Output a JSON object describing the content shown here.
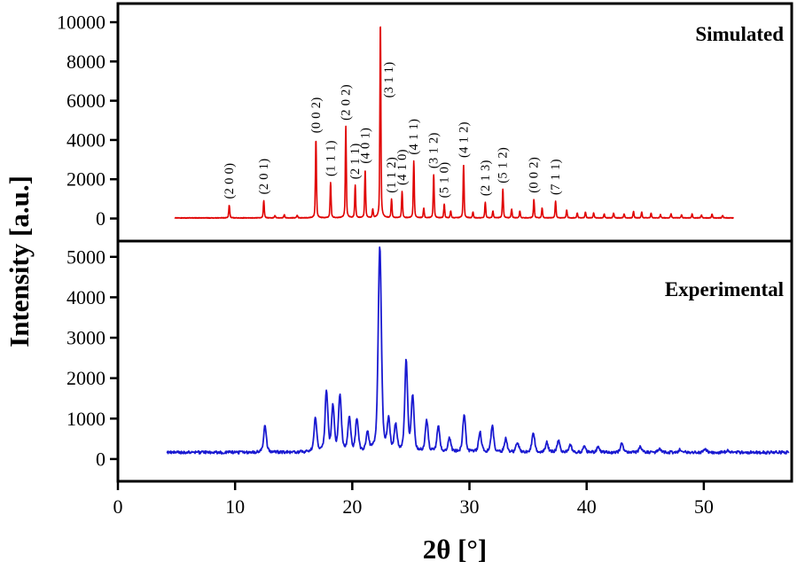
{
  "chart_data": {
    "type": "line",
    "xlabel": "2θ [°]",
    "ylabel": "Intensity [a.u.]",
    "x_ticks": [
      0,
      10,
      20,
      30,
      40,
      50
    ],
    "x_range": [
      0,
      57.5
    ],
    "panels": [
      {
        "label": "Simulated",
        "color": "#e00000",
        "y_ticks": [
          0,
          2000,
          4000,
          6000,
          8000,
          10000
        ],
        "y_max": 10000,
        "peaks": [
          {
            "two_theta": 9.5,
            "intensity": 650,
            "hkl": "(2 0 0)"
          },
          {
            "two_theta": 12.45,
            "intensity": 880,
            "hkl": "(2 0 1)"
          },
          {
            "two_theta": 13.4,
            "intensity": 120
          },
          {
            "two_theta": 14.2,
            "intensity": 170
          },
          {
            "two_theta": 15.3,
            "intensity": 140
          },
          {
            "two_theta": 16.9,
            "intensity": 4000,
            "hkl": "(0 0 2)"
          },
          {
            "two_theta": 18.15,
            "intensity": 1800,
            "hkl": "(1 1 1)"
          },
          {
            "two_theta": 19.45,
            "intensity": 4650,
            "hkl": "(2 0 2)"
          },
          {
            "two_theta": 20.25,
            "intensity": 1650,
            "hkl": "(2 1 1)"
          },
          {
            "two_theta": 21.1,
            "intensity": 2450,
            "hkl": "(4 0 1)"
          },
          {
            "two_theta": 21.75,
            "intensity": 420
          },
          {
            "two_theta": 22.4,
            "intensity": 10000,
            "hkl": "(3 1 1)"
          },
          {
            "two_theta": 23.35,
            "intensity": 950,
            "hkl": "(1 1 2)"
          },
          {
            "two_theta": 24.25,
            "intensity": 1350,
            "hkl": "(4 1 0)"
          },
          {
            "two_theta": 25.25,
            "intensity": 2900,
            "hkl": "(4 1 1)"
          },
          {
            "two_theta": 26.1,
            "intensity": 500
          },
          {
            "two_theta": 26.95,
            "intensity": 2200,
            "hkl": "(3 1 2)"
          },
          {
            "two_theta": 27.85,
            "intensity": 700,
            "hkl": "(5 1 0)"
          },
          {
            "two_theta": 28.4,
            "intensity": 350
          },
          {
            "two_theta": 29.5,
            "intensity": 2750,
            "hkl": "(4 1 2)"
          },
          {
            "two_theta": 30.3,
            "intensity": 300
          },
          {
            "two_theta": 31.35,
            "intensity": 800,
            "hkl": "(2 1 3)"
          },
          {
            "two_theta": 32.0,
            "intensity": 350
          },
          {
            "two_theta": 32.85,
            "intensity": 1450,
            "hkl": "(5 1 2)"
          },
          {
            "two_theta": 33.6,
            "intensity": 450
          },
          {
            "two_theta": 34.3,
            "intensity": 350
          },
          {
            "two_theta": 35.5,
            "intensity": 950,
            "hkl": "(0 0 2)"
          },
          {
            "two_theta": 36.2,
            "intensity": 500
          },
          {
            "two_theta": 37.35,
            "intensity": 850,
            "hkl": "(7 1 1)"
          },
          {
            "two_theta": 38.3,
            "intensity": 400
          },
          {
            "two_theta": 39.2,
            "intensity": 250
          },
          {
            "two_theta": 39.9,
            "intensity": 300
          },
          {
            "two_theta": 40.6,
            "intensity": 250
          },
          {
            "two_theta": 41.5,
            "intensity": 200
          },
          {
            "two_theta": 42.3,
            "intensity": 250
          },
          {
            "two_theta": 43.2,
            "intensity": 200
          },
          {
            "two_theta": 44.0,
            "intensity": 330
          },
          {
            "two_theta": 44.7,
            "intensity": 300
          },
          {
            "two_theta": 45.5,
            "intensity": 240
          },
          {
            "two_theta": 46.3,
            "intensity": 160
          },
          {
            "two_theta": 47.2,
            "intensity": 210
          },
          {
            "two_theta": 48.1,
            "intensity": 160
          },
          {
            "two_theta": 49.0,
            "intensity": 200
          },
          {
            "two_theta": 49.8,
            "intensity": 150
          },
          {
            "two_theta": 50.7,
            "intensity": 190
          },
          {
            "two_theta": 51.6,
            "intensity": 130
          }
        ]
      },
      {
        "label": "Experimental",
        "color": "#1a1ad1",
        "y_ticks": [
          0,
          1000,
          2000,
          3000,
          4000,
          5000
        ],
        "y_max": 5300,
        "baseline": 160,
        "peaks": [
          {
            "two_theta": 12.55,
            "intensity": 820
          },
          {
            "two_theta": 16.85,
            "intensity": 1000
          },
          {
            "two_theta": 17.8,
            "intensity": 1650
          },
          {
            "two_theta": 18.35,
            "intensity": 1250
          },
          {
            "two_theta": 18.95,
            "intensity": 1550
          },
          {
            "two_theta": 19.75,
            "intensity": 1000
          },
          {
            "two_theta": 20.4,
            "intensity": 950
          },
          {
            "two_theta": 21.3,
            "intensity": 600
          },
          {
            "two_theta": 22.35,
            "intensity": 5250
          },
          {
            "two_theta": 23.1,
            "intensity": 900
          },
          {
            "two_theta": 23.7,
            "intensity": 800
          },
          {
            "two_theta": 24.6,
            "intensity": 2400
          },
          {
            "two_theta": 25.15,
            "intensity": 1500
          },
          {
            "two_theta": 26.35,
            "intensity": 950
          },
          {
            "two_theta": 27.35,
            "intensity": 800
          },
          {
            "two_theta": 28.3,
            "intensity": 500
          },
          {
            "two_theta": 29.55,
            "intensity": 1100
          },
          {
            "two_theta": 30.9,
            "intensity": 650
          },
          {
            "two_theta": 31.95,
            "intensity": 800
          },
          {
            "two_theta": 33.1,
            "intensity": 500
          },
          {
            "two_theta": 34.1,
            "intensity": 400
          },
          {
            "two_theta": 35.45,
            "intensity": 650
          },
          {
            "two_theta": 36.6,
            "intensity": 400
          },
          {
            "two_theta": 37.6,
            "intensity": 450
          },
          {
            "two_theta": 38.6,
            "intensity": 350
          },
          {
            "two_theta": 39.8,
            "intensity": 300
          },
          {
            "two_theta": 41.0,
            "intensity": 300
          },
          {
            "two_theta": 43.0,
            "intensity": 380
          },
          {
            "two_theta": 44.6,
            "intensity": 300
          },
          {
            "two_theta": 46.2,
            "intensity": 250
          },
          {
            "two_theta": 48.0,
            "intensity": 230
          },
          {
            "two_theta": 50.1,
            "intensity": 250
          },
          {
            "two_theta": 52.0,
            "intensity": 200
          }
        ]
      }
    ]
  }
}
